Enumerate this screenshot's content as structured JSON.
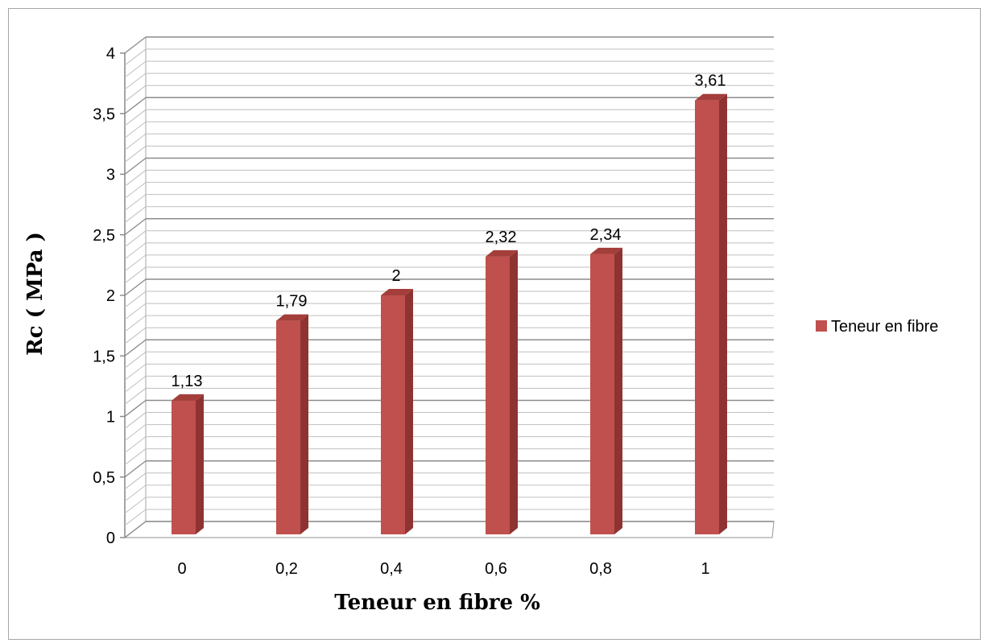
{
  "chart_data": {
    "type": "bar",
    "categories": [
      "0",
      "0,2",
      "0,4",
      "0,6",
      "0,8",
      "1"
    ],
    "series": [
      {
        "name": "Teneur en fibre",
        "values": [
          1.13,
          1.79,
          2,
          2.32,
          2.34,
          3.61
        ],
        "labels": [
          "1,13",
          "1,79",
          "2",
          "2,32",
          "2,34",
          "3,61"
        ],
        "color": "#c0504d"
      }
    ],
    "title": "",
    "xlabel": "Teneur en fibre %",
    "ylabel": "Rc ( MPa )",
    "ylim": [
      0,
      4
    ],
    "yticks": [
      0,
      0.5,
      1,
      1.5,
      2,
      2.5,
      3,
      3.5,
      4
    ],
    "ytick_labels": [
      "0",
      "0,5",
      "1",
      "1,5",
      "2",
      "2,5",
      "3",
      "3,5",
      "4"
    ],
    "grid": true,
    "legend": "right",
    "style": "3d-column"
  }
}
